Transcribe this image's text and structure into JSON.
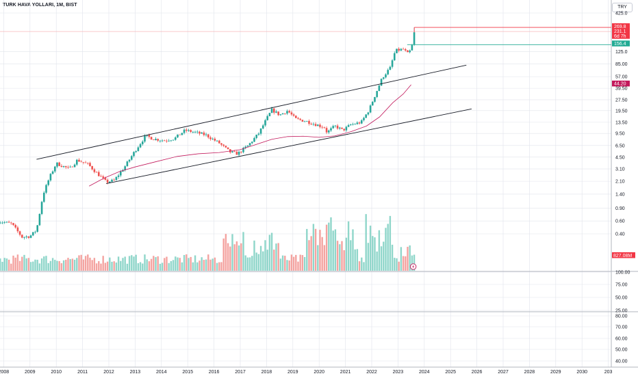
{
  "header": {
    "title": "TURK HAVA YOLLARI, 1M, BIST",
    "currency_button": "TRY"
  },
  "chart_data": {
    "type": "candlestick",
    "symbol": "TURK HAVA YOLLARI",
    "interval": "1M",
    "exchange": "BIST",
    "price_axis": {
      "scale": "log",
      "ticks": [
        "425.0",
        "125.0",
        "85.00",
        "57.00",
        "39.50",
        "27.50",
        "19.50",
        "13.50",
        "9.50",
        "6.50",
        "4.50",
        "3.10",
        "2.10",
        "1.40",
        "0.90",
        "0.60",
        "0.40"
      ]
    },
    "price_labels": [
      {
        "text": "269.8",
        "color": "#f23645"
      },
      {
        "text": "231.1",
        "color": "#f23645"
      },
      {
        "text": "6d 7h",
        "color": "#f23645"
      },
      {
        "text": "156.4",
        "color": "#22ab94"
      },
      {
        "text": "44.20",
        "color": "#c2185b"
      }
    ],
    "volume_label": "827.08M",
    "pane2": {
      "ticks": [
        "100.00",
        "75.00",
        "50.00",
        "25.00"
      ]
    },
    "pane3": {
      "ticks": [
        "80.00",
        "70.00",
        "60.00",
        "50.00",
        "40.00"
      ]
    },
    "time_axis": {
      "labels": [
        "2008",
        "2009",
        "2010",
        "2011",
        "2012",
        "2013",
        "2014",
        "2015",
        "2016",
        "2017",
        "2018",
        "2019",
        "2020",
        "2021",
        "2022",
        "2023",
        "2024",
        "2025",
        "2026",
        "2027",
        "2028",
        "2029",
        "2030",
        "203"
      ]
    },
    "anchors": [
      [
        2007.7,
        0.6
      ],
      [
        2008.3,
        0.55
      ],
      [
        2008.7,
        0.36
      ],
      [
        2009.0,
        0.37
      ],
      [
        2009.25,
        0.45
      ],
      [
        2009.5,
        1.4
      ],
      [
        2009.75,
        2.4
      ],
      [
        2010.0,
        3.7
      ],
      [
        2010.5,
        3.1
      ],
      [
        2010.8,
        4.1
      ],
      [
        2011.2,
        3.6
      ],
      [
        2011.6,
        2.6
      ],
      [
        2011.9,
        2.05
      ],
      [
        2012.2,
        2.15
      ],
      [
        2012.6,
        3.3
      ],
      [
        2013.0,
        5.5
      ],
      [
        2013.4,
        8.8
      ],
      [
        2013.7,
        8.0
      ],
      [
        2014.1,
        7.6
      ],
      [
        2014.5,
        8.1
      ],
      [
        2014.9,
        10.5
      ],
      [
        2015.3,
        9.8
      ],
      [
        2015.7,
        9.0
      ],
      [
        2016.2,
        7.0
      ],
      [
        2016.6,
        5.3
      ],
      [
        2016.9,
        5.0
      ],
      [
        2017.3,
        6.5
      ],
      [
        2017.7,
        9.5
      ],
      [
        2018.0,
        15.0
      ],
      [
        2018.2,
        20.0
      ],
      [
        2018.5,
        17.0
      ],
      [
        2018.8,
        19.5
      ],
      [
        2019.1,
        15.0
      ],
      [
        2019.5,
        14.0
      ],
      [
        2019.9,
        12.5
      ],
      [
        2020.2,
        11.5
      ],
      [
        2020.3,
        9.8
      ],
      [
        2020.6,
        12.0
      ],
      [
        2020.9,
        10.5
      ],
      [
        2021.2,
        12.5
      ],
      [
        2021.6,
        13.5
      ],
      [
        2021.9,
        20.0
      ],
      [
        2022.1,
        30.0
      ],
      [
        2022.4,
        55.0
      ],
      [
        2022.7,
        75.0
      ],
      [
        2022.9,
        130.0
      ],
      [
        2023.2,
        135.0
      ],
      [
        2023.4,
        115.0
      ],
      [
        2023.55,
        156.4
      ],
      [
        2023.65,
        231.1
      ]
    ],
    "moving_average": {
      "color": "#c2185b",
      "points": [
        [
          2011.25,
          1.8
        ],
        [
          2011.8,
          2.3
        ],
        [
          2012.4,
          2.85
        ],
        [
          2013.0,
          3.3
        ],
        [
          2013.8,
          3.9
        ],
        [
          2014.6,
          4.6
        ],
        [
          2015.4,
          5.0
        ],
        [
          2016.2,
          5.2
        ],
        [
          2017.0,
          5.7
        ],
        [
          2017.6,
          6.7
        ],
        [
          2018.2,
          7.9
        ],
        [
          2018.8,
          8.6
        ],
        [
          2019.4,
          8.7
        ],
        [
          2020.0,
          8.4
        ],
        [
          2020.6,
          8.8
        ],
        [
          2021.2,
          10.0
        ],
        [
          2021.8,
          12.0
        ],
        [
          2022.3,
          16.0
        ],
        [
          2022.8,
          25.0
        ],
        [
          2023.2,
          33.0
        ],
        [
          2023.5,
          44.2
        ]
      ]
    },
    "trendlines": [
      {
        "from": [
          2009.25,
          4.2
        ],
        "to": [
          2025.6,
          82.0
        ],
        "color": "#131722"
      },
      {
        "from": [
          2011.9,
          1.95
        ],
        "to": [
          2025.8,
          20.6
        ],
        "color": "#131722"
      }
    ],
    "horizontal_lines": [
      {
        "price": 269.8,
        "color": "#f23645"
      },
      {
        "price": 231.1,
        "color": "#f23645"
      },
      {
        "price": 156.4,
        "color": "#22ab94"
      }
    ],
    "colors": {
      "up": "#26a69a",
      "down": "#ef5350",
      "vol_up": "#8fd6ca",
      "vol_down": "#f4a3a0",
      "grid": "#e0e3eb"
    }
  }
}
